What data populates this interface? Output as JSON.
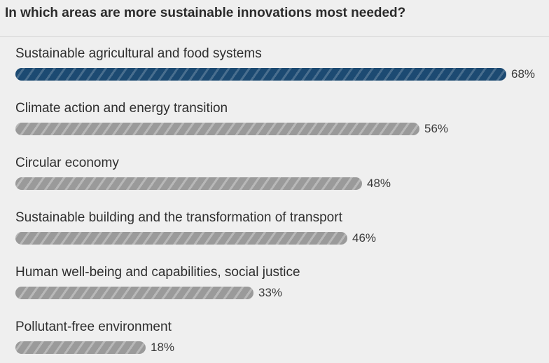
{
  "chart_data": {
    "type": "bar",
    "orientation": "horizontal",
    "title": "In which areas are more sustainable innovations most needed?",
    "categories": [
      "Sustainable agricultural and food systems",
      "Climate action and energy transition",
      "Circular economy",
      "Sustainable building and the transformation of transport",
      "Human well-being and capabilities, social justice",
      "Pollutant-free environment"
    ],
    "values": [
      68,
      56,
      48,
      46,
      33,
      18
    ],
    "value_labels": [
      "68%",
      "56%",
      "48%",
      "46%",
      "33%",
      "18%"
    ],
    "unit": "%",
    "xlim": [
      0,
      68
    ],
    "highlight_index": 0,
    "colors": {
      "highlight": "#1c4a72",
      "default": "#9a9a9a"
    },
    "grid": false,
    "legend": "none"
  }
}
